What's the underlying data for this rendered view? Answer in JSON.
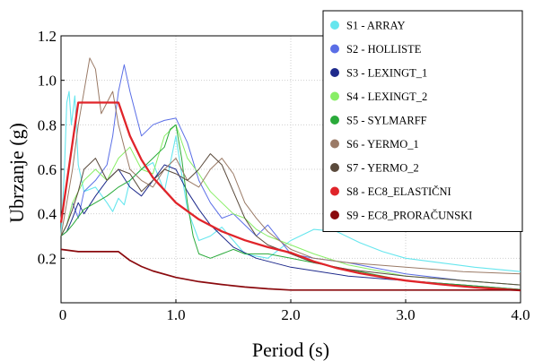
{
  "chart_data": {
    "type": "line",
    "xlabel": "Period (s)",
    "ylabel": "Ubrzanje (g)",
    "xlim": [
      0,
      4
    ],
    "ylim": [
      0,
      1.2
    ],
    "xticks": [
      "0",
      "1.0",
      "2.0",
      "3.0",
      "4.0"
    ],
    "yticks": [
      "0.2",
      "0.4",
      "0.6",
      "0.8",
      "1.0",
      "1.2"
    ],
    "grid": true,
    "legend_position": "top-right",
    "series": [
      {
        "name": "S1 - ARRAY",
        "color": "#66e6ee",
        "width": 1.1,
        "points": [
          [
            0,
            0.3
          ],
          [
            0.03,
            0.6
          ],
          [
            0.05,
            0.9
          ],
          [
            0.07,
            0.95
          ],
          [
            0.09,
            0.8
          ],
          [
            0.12,
            0.93
          ],
          [
            0.15,
            0.62
          ],
          [
            0.2,
            0.5
          ],
          [
            0.3,
            0.52
          ],
          [
            0.4,
            0.45
          ],
          [
            0.45,
            0.41
          ],
          [
            0.5,
            0.47
          ],
          [
            0.55,
            0.44
          ],
          [
            0.6,
            0.55
          ],
          [
            0.7,
            0.6
          ],
          [
            0.8,
            0.63
          ],
          [
            0.9,
            0.5
          ],
          [
            1.0,
            0.75
          ],
          [
            1.05,
            0.58
          ],
          [
            1.1,
            0.42
          ],
          [
            1.2,
            0.28
          ],
          [
            1.3,
            0.3
          ],
          [
            1.4,
            0.34
          ],
          [
            1.5,
            0.28
          ],
          [
            1.6,
            0.22
          ],
          [
            1.8,
            0.2
          ],
          [
            2.0,
            0.28
          ],
          [
            2.2,
            0.33
          ],
          [
            2.4,
            0.32
          ],
          [
            2.6,
            0.27
          ],
          [
            2.8,
            0.23
          ],
          [
            3.0,
            0.2
          ],
          [
            3.3,
            0.18
          ],
          [
            3.6,
            0.16
          ],
          [
            4.0,
            0.14
          ]
        ]
      },
      {
        "name": "S2 - HOLLISTE",
        "color": "#5a6ee6",
        "width": 1.0,
        "points": [
          [
            0,
            0.3
          ],
          [
            0.05,
            0.35
          ],
          [
            0.1,
            0.45
          ],
          [
            0.15,
            0.38
          ],
          [
            0.2,
            0.5
          ],
          [
            0.3,
            0.55
          ],
          [
            0.4,
            0.62
          ],
          [
            0.45,
            0.75
          ],
          [
            0.5,
            0.95
          ],
          [
            0.55,
            1.07
          ],
          [
            0.6,
            0.95
          ],
          [
            0.7,
            0.75
          ],
          [
            0.8,
            0.8
          ],
          [
            0.9,
            0.82
          ],
          [
            1.0,
            0.83
          ],
          [
            1.1,
            0.72
          ],
          [
            1.2,
            0.55
          ],
          [
            1.3,
            0.45
          ],
          [
            1.4,
            0.38
          ],
          [
            1.5,
            0.4
          ],
          [
            1.6,
            0.35
          ],
          [
            1.7,
            0.3
          ],
          [
            1.8,
            0.35
          ],
          [
            2.0,
            0.22
          ],
          [
            2.2,
            0.2
          ],
          [
            2.5,
            0.18
          ],
          [
            3.0,
            0.13
          ],
          [
            3.5,
            0.1
          ],
          [
            4.0,
            0.08
          ]
        ]
      },
      {
        "name": "S3 - LEXINGT_1",
        "color": "#1e2a8c",
        "width": 1.0,
        "points": [
          [
            0,
            0.3
          ],
          [
            0.05,
            0.32
          ],
          [
            0.1,
            0.38
          ],
          [
            0.15,
            0.45
          ],
          [
            0.2,
            0.4
          ],
          [
            0.3,
            0.48
          ],
          [
            0.4,
            0.55
          ],
          [
            0.5,
            0.6
          ],
          [
            0.6,
            0.52
          ],
          [
            0.7,
            0.48
          ],
          [
            0.8,
            0.55
          ],
          [
            0.9,
            0.62
          ],
          [
            1.0,
            0.6
          ],
          [
            1.1,
            0.5
          ],
          [
            1.2,
            0.42
          ],
          [
            1.3,
            0.35
          ],
          [
            1.4,
            0.3
          ],
          [
            1.5,
            0.25
          ],
          [
            1.7,
            0.2
          ],
          [
            2.0,
            0.16
          ],
          [
            2.5,
            0.12
          ],
          [
            3.0,
            0.1
          ],
          [
            3.5,
            0.08
          ],
          [
            4.0,
            0.06
          ]
        ]
      },
      {
        "name": "S4 - LEXINGT_2",
        "color": "#88ee66",
        "width": 1.0,
        "points": [
          [
            0,
            0.3
          ],
          [
            0.05,
            0.35
          ],
          [
            0.1,
            0.45
          ],
          [
            0.15,
            0.5
          ],
          [
            0.2,
            0.55
          ],
          [
            0.3,
            0.6
          ],
          [
            0.4,
            0.55
          ],
          [
            0.5,
            0.65
          ],
          [
            0.6,
            0.7
          ],
          [
            0.7,
            0.6
          ],
          [
            0.8,
            0.58
          ],
          [
            0.9,
            0.75
          ],
          [
            1.0,
            0.8
          ],
          [
            1.1,
            0.65
          ],
          [
            1.2,
            0.58
          ],
          [
            1.3,
            0.5
          ],
          [
            1.4,
            0.45
          ],
          [
            1.5,
            0.4
          ],
          [
            1.6,
            0.38
          ],
          [
            1.7,
            0.33
          ],
          [
            1.8,
            0.3
          ],
          [
            2.0,
            0.26
          ],
          [
            2.2,
            0.22
          ],
          [
            2.5,
            0.17
          ],
          [
            3.0,
            0.12
          ],
          [
            3.5,
            0.1
          ],
          [
            4.0,
            0.08
          ]
        ]
      },
      {
        "name": "S5 - SYLMARFF",
        "color": "#2aaa3a",
        "width": 1.0,
        "points": [
          [
            0,
            0.3
          ],
          [
            0.05,
            0.32
          ],
          [
            0.1,
            0.35
          ],
          [
            0.2,
            0.42
          ],
          [
            0.3,
            0.45
          ],
          [
            0.4,
            0.48
          ],
          [
            0.5,
            0.52
          ],
          [
            0.6,
            0.55
          ],
          [
            0.7,
            0.6
          ],
          [
            0.8,
            0.65
          ],
          [
            0.9,
            0.7
          ],
          [
            0.95,
            0.78
          ],
          [
            1.0,
            0.8
          ],
          [
            1.05,
            0.65
          ],
          [
            1.1,
            0.45
          ],
          [
            1.15,
            0.3
          ],
          [
            1.2,
            0.22
          ],
          [
            1.3,
            0.2
          ],
          [
            1.4,
            0.22
          ],
          [
            1.5,
            0.24
          ],
          [
            1.6,
            0.22
          ],
          [
            1.8,
            0.22
          ],
          [
            2.0,
            0.2
          ],
          [
            2.5,
            0.15
          ],
          [
            3.0,
            0.1
          ],
          [
            3.5,
            0.08
          ],
          [
            4.0,
            0.06
          ]
        ]
      },
      {
        "name": "S6 - YERMO_1",
        "color": "#9a7a66",
        "width": 1.0,
        "points": [
          [
            0,
            0.3
          ],
          [
            0.05,
            0.45
          ],
          [
            0.1,
            0.6
          ],
          [
            0.15,
            0.8
          ],
          [
            0.2,
            0.95
          ],
          [
            0.25,
            1.1
          ],
          [
            0.3,
            1.05
          ],
          [
            0.35,
            0.85
          ],
          [
            0.4,
            0.9
          ],
          [
            0.45,
            0.95
          ],
          [
            0.5,
            0.8
          ],
          [
            0.55,
            0.7
          ],
          [
            0.6,
            0.6
          ],
          [
            0.7,
            0.55
          ],
          [
            0.8,
            0.52
          ],
          [
            0.9,
            0.6
          ],
          [
            1.0,
            0.65
          ],
          [
            1.1,
            0.55
          ],
          [
            1.2,
            0.52
          ],
          [
            1.3,
            0.6
          ],
          [
            1.4,
            0.65
          ],
          [
            1.5,
            0.58
          ],
          [
            1.6,
            0.45
          ],
          [
            1.7,
            0.38
          ],
          [
            1.8,
            0.32
          ],
          [
            1.9,
            0.28
          ],
          [
            2.0,
            0.24
          ],
          [
            2.2,
            0.2
          ],
          [
            2.5,
            0.18
          ],
          [
            3.0,
            0.16
          ],
          [
            3.5,
            0.14
          ],
          [
            4.0,
            0.13
          ]
        ]
      },
      {
        "name": "S7 - YERMO_2",
        "color": "#5a4a3c",
        "width": 1.0,
        "points": [
          [
            0,
            0.3
          ],
          [
            0.05,
            0.35
          ],
          [
            0.1,
            0.42
          ],
          [
            0.15,
            0.5
          ],
          [
            0.2,
            0.6
          ],
          [
            0.3,
            0.65
          ],
          [
            0.4,
            0.55
          ],
          [
            0.5,
            0.6
          ],
          [
            0.6,
            0.58
          ],
          [
            0.7,
            0.5
          ],
          [
            0.8,
            0.55
          ],
          [
            0.9,
            0.6
          ],
          [
            1.0,
            0.58
          ],
          [
            1.1,
            0.55
          ],
          [
            1.2,
            0.6
          ],
          [
            1.3,
            0.67
          ],
          [
            1.4,
            0.62
          ],
          [
            1.5,
            0.5
          ],
          [
            1.6,
            0.38
          ],
          [
            1.7,
            0.3
          ],
          [
            1.8,
            0.26
          ],
          [
            2.0,
            0.22
          ],
          [
            2.2,
            0.18
          ],
          [
            2.5,
            0.15
          ],
          [
            3.0,
            0.12
          ],
          [
            3.5,
            0.1
          ],
          [
            4.0,
            0.08
          ]
        ]
      },
      {
        "name": "S8 - EC8_ELASTIČNI",
        "color": "#e0242a",
        "width": 2.3,
        "points": [
          [
            0,
            0.36
          ],
          [
            0.05,
            0.54
          ],
          [
            0.1,
            0.72
          ],
          [
            0.15,
            0.9
          ],
          [
            0.5,
            0.9
          ],
          [
            0.6,
            0.75
          ],
          [
            0.7,
            0.643
          ],
          [
            0.8,
            0.563
          ],
          [
            1.0,
            0.45
          ],
          [
            1.2,
            0.375
          ],
          [
            1.4,
            0.321
          ],
          [
            1.6,
            0.281
          ],
          [
            1.8,
            0.25
          ],
          [
            2.0,
            0.225
          ],
          [
            2.2,
            0.186
          ],
          [
            2.4,
            0.156
          ],
          [
            2.6,
            0.133
          ],
          [
            2.8,
            0.115
          ],
          [
            3.0,
            0.1
          ],
          [
            3.3,
            0.083
          ],
          [
            3.6,
            0.069
          ],
          [
            4.0,
            0.056
          ]
        ]
      },
      {
        "name": "S9 - EC8_PRORAČUNSKI",
        "color": "#8b0a0e",
        "width": 1.7,
        "points": [
          [
            0,
            0.24
          ],
          [
            0.15,
            0.23
          ],
          [
            0.5,
            0.23
          ],
          [
            0.6,
            0.19
          ],
          [
            0.7,
            0.163
          ],
          [
            0.8,
            0.143
          ],
          [
            1.0,
            0.114
          ],
          [
            1.2,
            0.095
          ],
          [
            1.4,
            0.082
          ],
          [
            1.6,
            0.071
          ],
          [
            1.8,
            0.063
          ],
          [
            2.0,
            0.057
          ],
          [
            4.0,
            0.057
          ]
        ]
      }
    ]
  }
}
